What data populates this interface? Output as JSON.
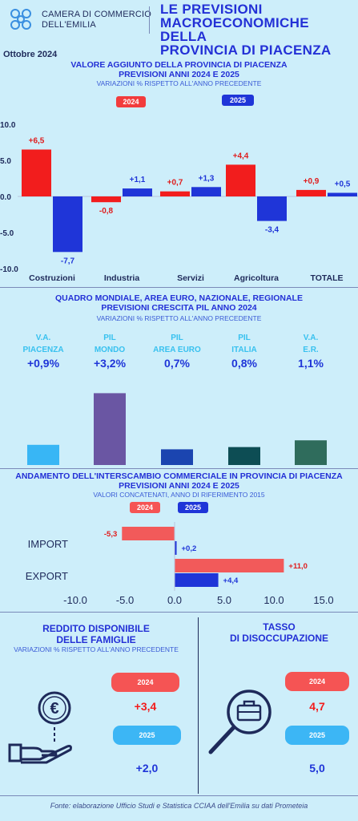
{
  "header": {
    "brand_line1": "CAMERA DI COMMERCIO",
    "brand_line2": "DELL'EMILIA",
    "title_line1": "LE PREVISIONI",
    "title_line2": "MACROECONOMICHE DELLA",
    "title_line3": "PROVINCIA DI PIACENZA",
    "date": "Ottobre 2024"
  },
  "sec1": {
    "title1": "VALORE AGGIUNTO DELLA PROVINCIA DI PIACENZA",
    "title2": "PREVISIONI ANNI 2024 E 2025",
    "subtitle": "VARIAZIONI % RISPETTO ALL'ANNO PRECEDENTE",
    "legend_2024": "2024",
    "legend_2025": "2025"
  },
  "sec2": {
    "title1": "QUADRO MONDIALE, AREA EURO, NAZIONALE, REGIONALE",
    "title2": "PREVISIONI CRESCITA PIL ANNO 2024",
    "subtitle": "VARIAZIONI % RISPETTO ALL'ANNO PRECEDENTE"
  },
  "sec3": {
    "title1": "ANDAMENTO DELL'INTERSCAMBIO COMMERCIALE IN PROVINCIA DI PIACENZA",
    "title2": "PREVISIONI ANNI  2024 E 2025",
    "subtitle": "VALORI CONCATENATI, ANNO DI RIFERIMENTO 2015",
    "legend_2024": "2024",
    "legend_2025": "2025"
  },
  "sec4": {
    "reddito_title1": "REDDITO DISPONIBILE",
    "reddito_title2": "DELLE FAMIGLIE",
    "reddito_sub": "VARIAZIONI % RISPETTO ALL'ANNO PRECEDENTE",
    "reddito_label_2024": "2024",
    "reddito_value_2024": "+3,4",
    "reddito_label_2025": "2025",
    "reddito_value_2025": "+2,0",
    "tasso_title1": "TASSO",
    "tasso_title2": "DI DISOCCUPAZIONE",
    "tasso_label_2024": "2024",
    "tasso_value_2024": "4,7",
    "tasso_label_2025": "2025",
    "tasso_value_2025": "5,0"
  },
  "footer": "Fonte: elaborazione Ufficio Studi e Statistica CCIAA dell'Emilia su dati Prometeia",
  "colors": {
    "c2024": "#f21d1d",
    "c2025": "#1f35d8"
  },
  "chart_data": [
    {
      "type": "bar",
      "categories": [
        "Costruzioni",
        "Industria",
        "Servizi",
        "Agricoltura",
        "TOTALE"
      ],
      "series": [
        {
          "name": "2024",
          "values": [
            6.5,
            -0.8,
            0.7,
            4.4,
            0.9
          ],
          "labels": [
            "+6,5",
            "-0,8",
            "+0,7",
            "+4,4",
            "+0,9"
          ]
        },
        {
          "name": "2025",
          "values": [
            -7.7,
            1.1,
            1.3,
            -3.4,
            0.5
          ],
          "labels": [
            "-7,7",
            "+1,1",
            "+1,3",
            "-3,4",
            "+0,5"
          ]
        }
      ],
      "yticks": [
        "10.0",
        "5.0",
        "0.0",
        "-5.0",
        "-10.0"
      ],
      "ylim": [
        -10,
        10
      ],
      "grid": false
    },
    {
      "type": "bar",
      "categories": [
        "V.A. PIACENZA",
        "PIL MONDO",
        "PIL AREA EURO",
        "PIL ITALIA",
        "V.A. E.R."
      ],
      "category_lines": [
        [
          "V.A.",
          "PIACENZA"
        ],
        [
          "PIL",
          "MONDO"
        ],
        [
          "PIL",
          "AREA EURO"
        ],
        [
          "PIL",
          "ITALIA"
        ],
        [
          "V.A.",
          "E.R."
        ]
      ],
      "values": [
        0.9,
        3.2,
        0.7,
        0.8,
        1.1
      ],
      "labels": [
        "+0,9%",
        "+3,2%",
        "0,7%",
        "0,8%",
        "1,1%"
      ],
      "bar_colors": [
        "#38b6f5",
        "#6a56a3",
        "#1b45b0",
        "#0d4d54",
        "#2f6c5c"
      ],
      "grid": false
    },
    {
      "type": "bar",
      "orientation": "horizontal",
      "categories": [
        "IMPORT",
        "EXPORT"
      ],
      "series": [
        {
          "name": "2024",
          "values": [
            -5.3,
            11.0
          ],
          "labels": [
            "-5,3",
            "+11,0"
          ]
        },
        {
          "name": "2025",
          "values": [
            0.2,
            4.4
          ],
          "labels": [
            "+0,2",
            "+4,4"
          ]
        }
      ],
      "xticks": [
        "-10.0",
        "-5.0",
        "0.0",
        "5.0",
        "10.0",
        "15.0"
      ],
      "xlim": [
        -10,
        15
      ],
      "grid": false
    }
  ]
}
